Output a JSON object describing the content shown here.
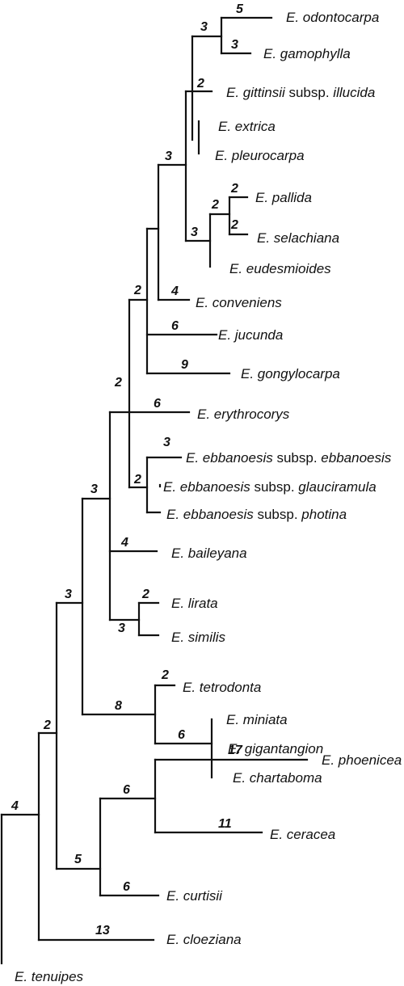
{
  "tree": {
    "taxa": [
      {
        "id": "odontocarpa",
        "parts": [
          {
            "text": "E. odontocarpa",
            "italic": true
          }
        ]
      },
      {
        "id": "gamophylla",
        "parts": [
          {
            "text": "E. gamophylla",
            "italic": true
          }
        ]
      },
      {
        "id": "gittinsii",
        "parts": [
          {
            "text": "E. gittinsii",
            "italic": true
          },
          {
            "text": " subsp. ",
            "italic": false
          },
          {
            "text": "illucida",
            "italic": true
          }
        ]
      },
      {
        "id": "extrica",
        "parts": [
          {
            "text": "E. extrica",
            "italic": true
          }
        ]
      },
      {
        "id": "pleurocarpa",
        "parts": [
          {
            "text": "E. pleurocarpa",
            "italic": true
          }
        ]
      },
      {
        "id": "pallida",
        "parts": [
          {
            "text": "E. pallida",
            "italic": true
          }
        ]
      },
      {
        "id": "selachiana",
        "parts": [
          {
            "text": "E. selachiana",
            "italic": true
          }
        ]
      },
      {
        "id": "eudesmioides",
        "parts": [
          {
            "text": "E. eudesmioides",
            "italic": true
          }
        ]
      },
      {
        "id": "conveniens",
        "parts": [
          {
            "text": "E. conveniens",
            "italic": true
          }
        ]
      },
      {
        "id": "jucunda",
        "parts": [
          {
            "text": "E. jucunda",
            "italic": true
          }
        ]
      },
      {
        "id": "gongylocarpa",
        "parts": [
          {
            "text": "E. gongylocarpa",
            "italic": true
          }
        ]
      },
      {
        "id": "erythrocorys",
        "parts": [
          {
            "text": "E. erythrocorys",
            "italic": true
          }
        ]
      },
      {
        "id": "ebbanoesis-ebbanoesis",
        "parts": [
          {
            "text": "E. ebbanoesis",
            "italic": true
          },
          {
            "text": " subsp. ",
            "italic": false
          },
          {
            "text": "ebbanoesis",
            "italic": true
          }
        ]
      },
      {
        "id": "ebbanoesis-glauciramula",
        "parts": [
          {
            "text": "E. ebbanoesis",
            "italic": true
          },
          {
            "text": " subsp. ",
            "italic": false
          },
          {
            "text": "glauciramula",
            "italic": true
          }
        ]
      },
      {
        "id": "ebbanoesis-photina",
        "parts": [
          {
            "text": "E. ebbanoesis",
            "italic": true
          },
          {
            "text": " subsp. ",
            "italic": false
          },
          {
            "text": "photina",
            "italic": true
          }
        ]
      },
      {
        "id": "baileyana",
        "parts": [
          {
            "text": "E. baileyana",
            "italic": true
          }
        ]
      },
      {
        "id": "lirata",
        "parts": [
          {
            "text": "E. lirata",
            "italic": true
          }
        ]
      },
      {
        "id": "similis",
        "parts": [
          {
            "text": "E. similis",
            "italic": true
          }
        ]
      },
      {
        "id": "tetrodonta",
        "parts": [
          {
            "text": "E. tetrodonta",
            "italic": true
          }
        ]
      },
      {
        "id": "miniata",
        "parts": [
          {
            "text": "E. miniata",
            "italic": true
          }
        ]
      },
      {
        "id": "gigantangion",
        "parts": [
          {
            "text": "E. gigantangion",
            "italic": true
          }
        ]
      },
      {
        "id": "chartaboma",
        "parts": [
          {
            "text": "E. chartaboma",
            "italic": true
          }
        ]
      },
      {
        "id": "phoenicea",
        "parts": [
          {
            "text": "E. phoenicea",
            "italic": true
          }
        ]
      },
      {
        "id": "ceracea",
        "parts": [
          {
            "text": "E. ceracea",
            "italic": true
          }
        ]
      },
      {
        "id": "curtisii",
        "parts": [
          {
            "text": "E. curtisii",
            "italic": true
          }
        ]
      },
      {
        "id": "cloeziana",
        "parts": [
          {
            "text": "E. cloeziana",
            "italic": true
          }
        ]
      },
      {
        "id": "tenuipes",
        "parts": [
          {
            "text": "E. tenuipes",
            "italic": true
          }
        ]
      }
    ],
    "support_values": [
      {
        "id": "s-odontocarpa",
        "value": "5"
      },
      {
        "id": "s-gamophylla",
        "value": "3"
      },
      {
        "id": "s-odo-gam",
        "value": "3"
      },
      {
        "id": "s-gittinsii",
        "value": "2"
      },
      {
        "id": "s-clade-a",
        "value": "3"
      },
      {
        "id": "s-pallida",
        "value": "2"
      },
      {
        "id": "s-selachiana",
        "value": "2"
      },
      {
        "id": "s-pal-sel",
        "value": "2"
      },
      {
        "id": "s-pal-sel-eud",
        "value": "3"
      },
      {
        "id": "s-conveniens",
        "value": "4"
      },
      {
        "id": "s-jucunda",
        "value": "6"
      },
      {
        "id": "s-gongylocarpa",
        "value": "9"
      },
      {
        "id": "s-clade-b",
        "value": "2"
      },
      {
        "id": "s-erythrocorys",
        "value": "6"
      },
      {
        "id": "s-ebbanoesis",
        "value": "3"
      },
      {
        "id": "s-ebbanoesis-clade",
        "value": "2"
      },
      {
        "id": "s-clade-c",
        "value": "2"
      },
      {
        "id": "s-baileyana",
        "value": "4"
      },
      {
        "id": "s-lirata",
        "value": "2"
      },
      {
        "id": "s-lir-sim",
        "value": "3"
      },
      {
        "id": "s-clade-d",
        "value": "3"
      },
      {
        "id": "s-tetrodonta",
        "value": "2"
      },
      {
        "id": "s-miniata-clade",
        "value": "6"
      },
      {
        "id": "s-tetrodonta-clade",
        "value": "8"
      },
      {
        "id": "s-clade-e",
        "value": "3"
      },
      {
        "id": "s-phoenicea",
        "value": "17"
      },
      {
        "id": "s-ceracea",
        "value": "11"
      },
      {
        "id": "s-pho-cer",
        "value": "6"
      },
      {
        "id": "s-curtisii",
        "value": "6"
      },
      {
        "id": "s-phoenicea-clade",
        "value": "5"
      },
      {
        "id": "s-clade-f",
        "value": "2"
      },
      {
        "id": "s-cloeziana",
        "value": "13"
      },
      {
        "id": "s-root",
        "value": "4"
      }
    ]
  }
}
